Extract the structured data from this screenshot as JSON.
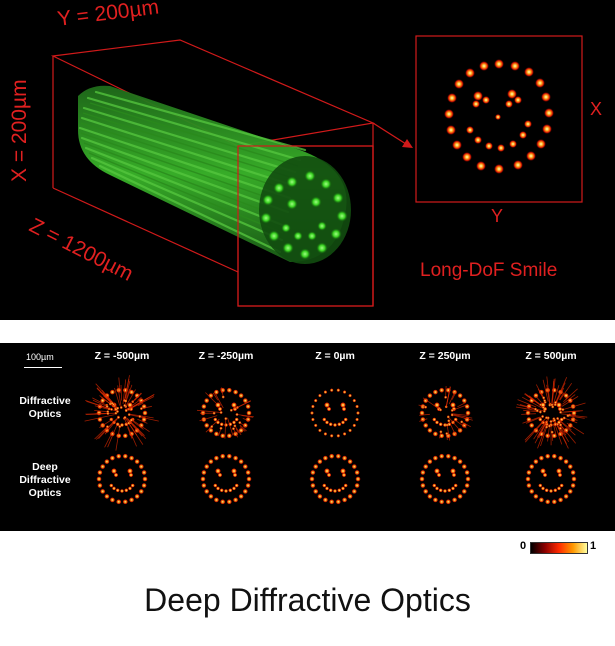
{
  "top_panel": {
    "y_dim_label": "Y = 200µm",
    "x_dim_label": "X = 200µm",
    "z_dim_label": "Z = 1200µm",
    "inset_x_axis": "X",
    "inset_y_axis": "Y",
    "inset_caption": "Long-DoF Smile"
  },
  "comparison_panel": {
    "scale_bar_label": "100µm",
    "columns": [
      "Z = -500µm",
      "Z = -250µm",
      "Z = 0µm",
      "Z = 250µm",
      "Z = 500µm"
    ],
    "rows": [
      {
        "label_lines": [
          "Diffractive",
          "Optics"
        ]
      },
      {
        "label_lines": [
          "Deep",
          "Diffractive",
          "Optics"
        ]
      }
    ]
  },
  "colorbar": {
    "min_label": "0",
    "max_label": "1",
    "colors": [
      "#000000",
      "#8b0000",
      "#ff2a00",
      "#ff9900",
      "#ffffa0"
    ]
  },
  "title": "Deep Diffractive Optics",
  "colors": {
    "annotation_red": "#e02020",
    "fiber_green": "#3ab52a",
    "background": "#000000"
  }
}
